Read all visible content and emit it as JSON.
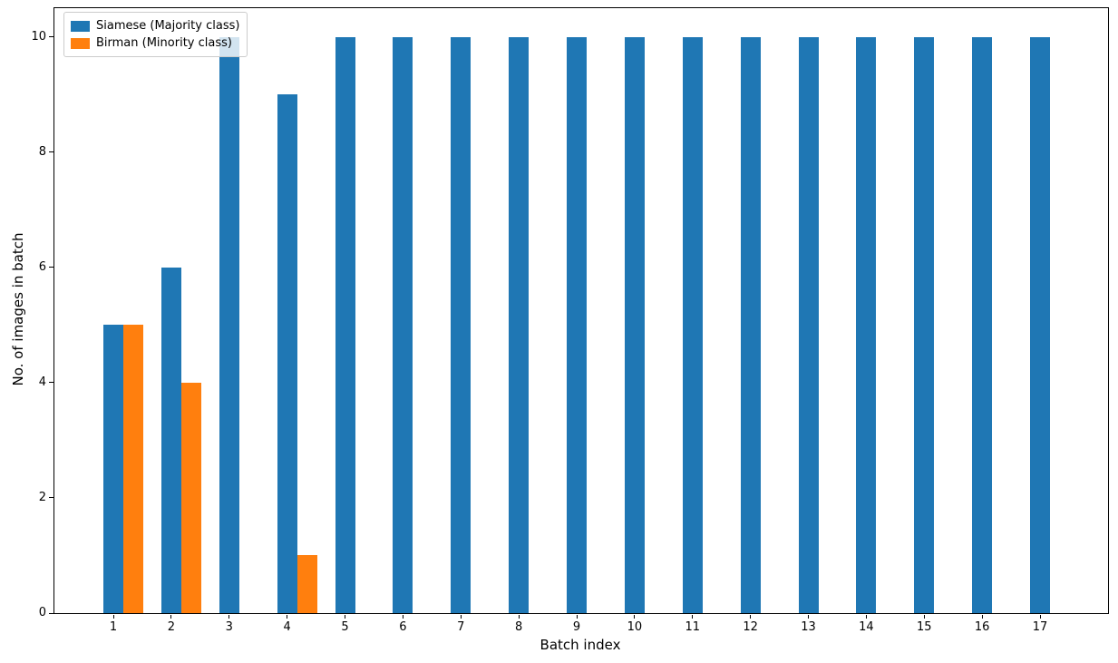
{
  "chart_data": {
    "type": "bar",
    "title": "",
    "xlabel": "Batch index",
    "ylabel": "No. of images in batch",
    "categories": [
      "1",
      "2",
      "3",
      "4",
      "5",
      "6",
      "7",
      "8",
      "9",
      "10",
      "11",
      "12",
      "13",
      "14",
      "15",
      "16",
      "17"
    ],
    "series": [
      {
        "name": "Siamese (Majority class)",
        "color": "#1f77b4",
        "values": [
          5,
          6,
          10,
          9,
          10,
          10,
          10,
          10,
          10,
          10,
          10,
          10,
          10,
          10,
          10,
          10,
          10
        ]
      },
      {
        "name": "Birman (Minority class)",
        "color": "#ff7f0e",
        "values": [
          5,
          4,
          0,
          1,
          0,
          0,
          0,
          0,
          0,
          0,
          0,
          0,
          0,
          0,
          0,
          0,
          0
        ]
      }
    ],
    "ylim": [
      0,
      10.5
    ],
    "yticks": [
      0,
      2,
      4,
      6,
      8,
      10
    ],
    "legend_position": "upper left",
    "grid": false
  }
}
